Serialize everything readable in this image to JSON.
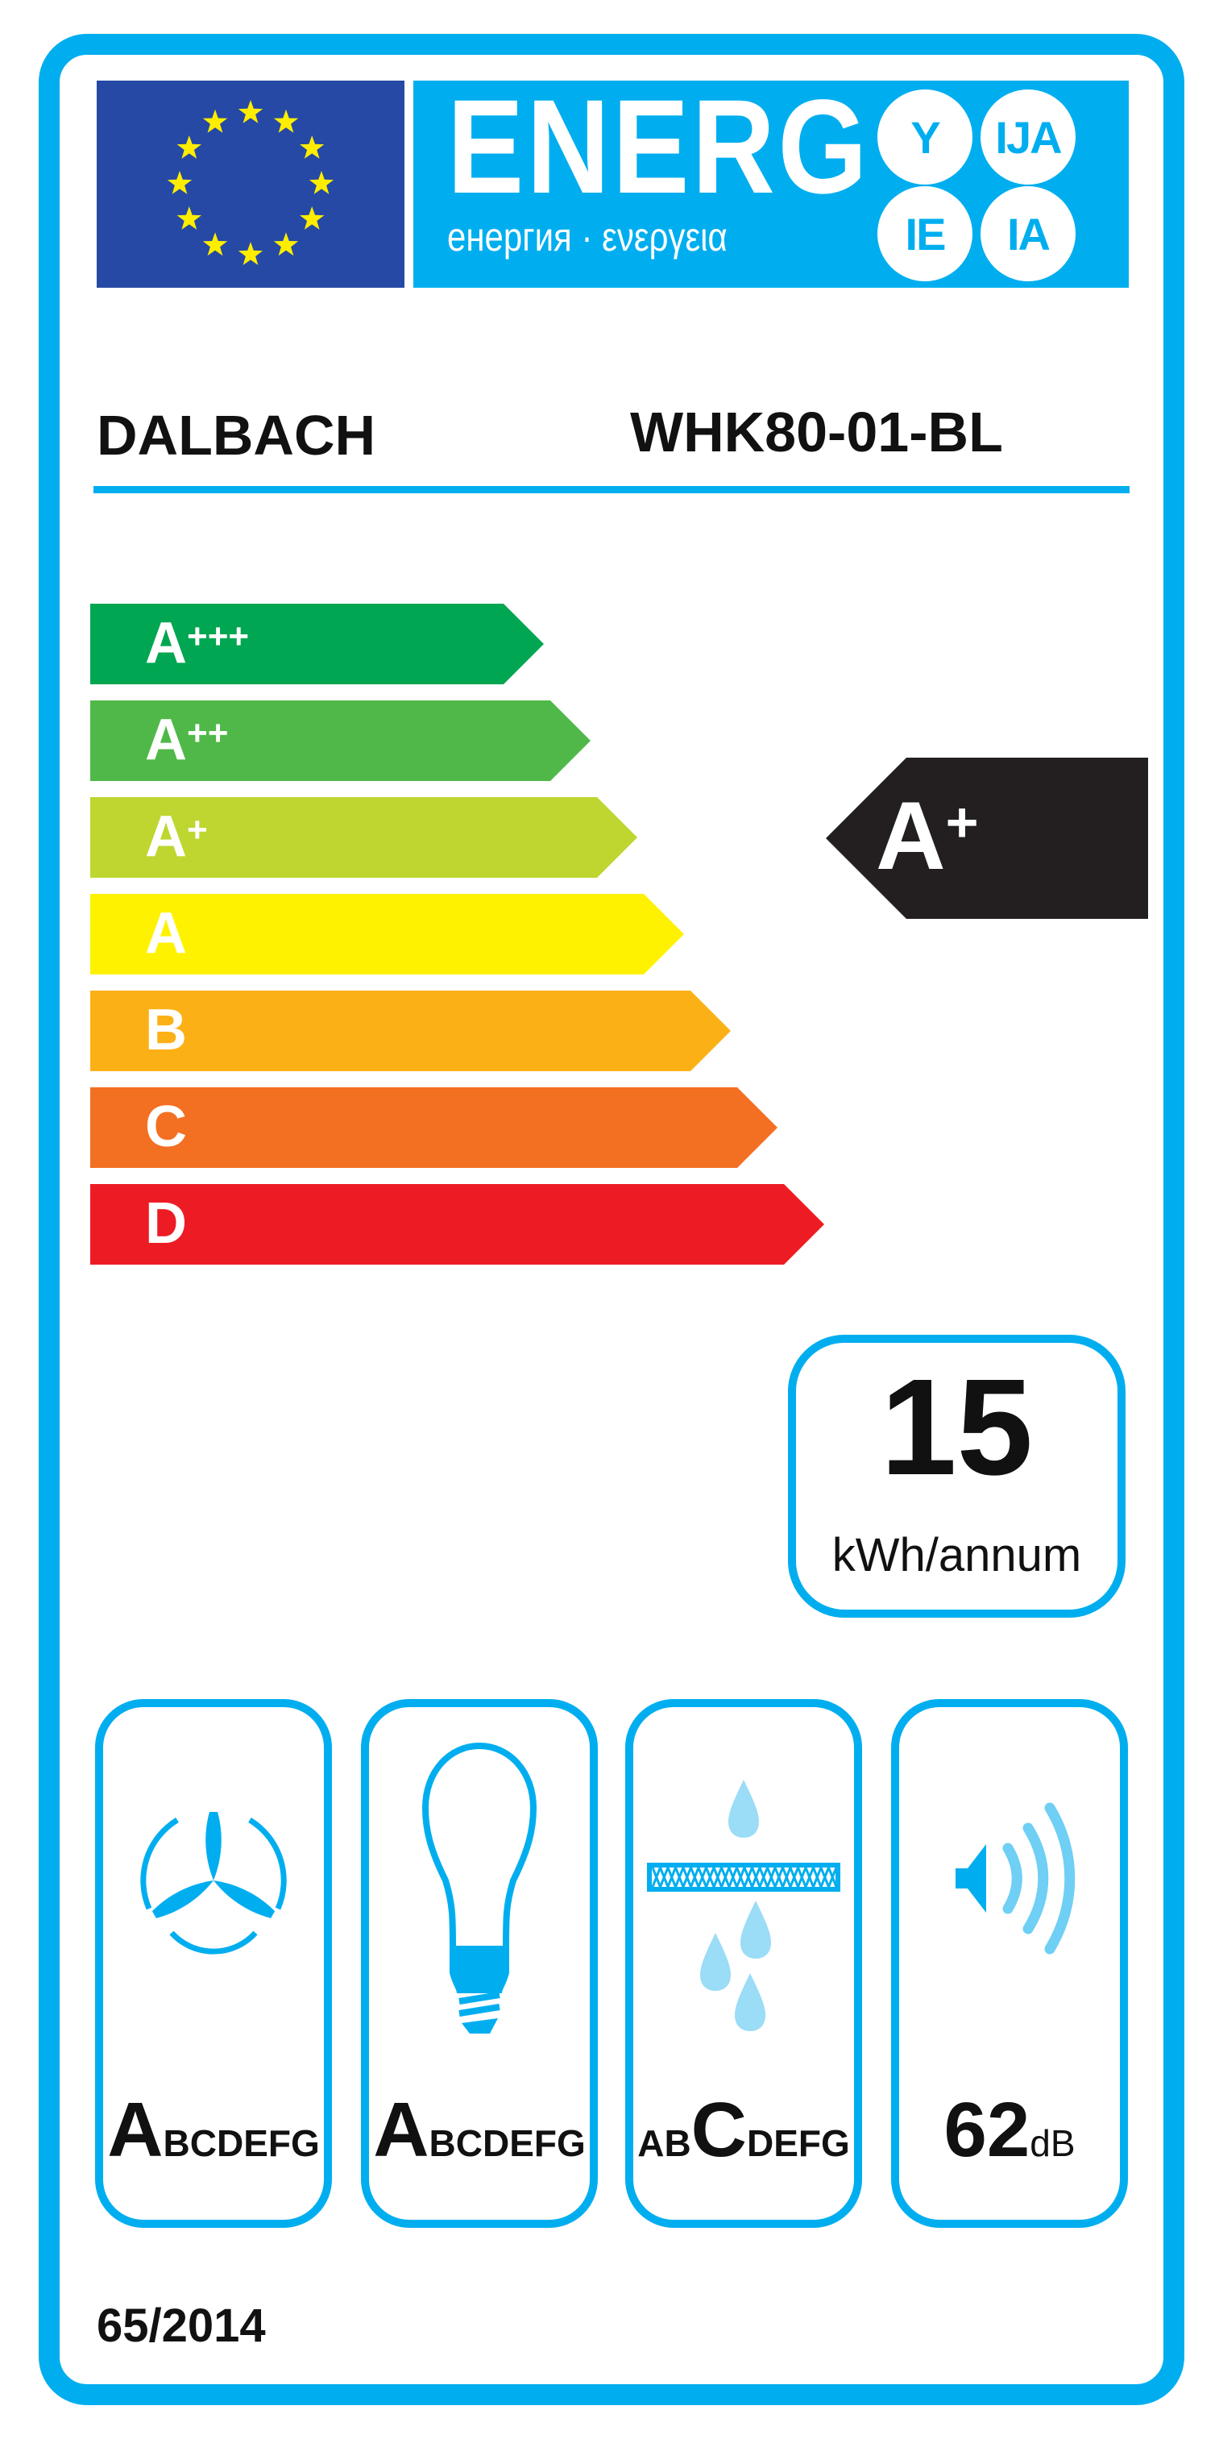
{
  "header": {
    "energy_word": "ENERG",
    "energy_subtitle": "енергия · ενεργεια",
    "suffixes": [
      "Y",
      "IJA",
      "IE",
      "IA"
    ],
    "flag_colors": {
      "background": "#2549a4",
      "stars": "#ffed00"
    }
  },
  "supplier": "DALBACH",
  "model": "WHK80-01-BL",
  "scale": [
    {
      "letter": "A",
      "plus": "+++",
      "color": "#00a651"
    },
    {
      "letter": "A",
      "plus": "++",
      "color": "#50b848"
    },
    {
      "letter": "A",
      "plus": "+",
      "color": "#bed62f"
    },
    {
      "letter": "A",
      "plus": "",
      "color": "#fff200"
    },
    {
      "letter": "B",
      "plus": "",
      "color": "#fbb116"
    },
    {
      "letter": "C",
      "plus": "",
      "color": "#f36f21"
    },
    {
      "letter": "D",
      "plus": "",
      "color": "#ed1c24"
    }
  ],
  "rating": {
    "letter": "A",
    "plus": "+",
    "color": "#231f20"
  },
  "consumption": {
    "value": "15",
    "unit": "kWh/annum"
  },
  "pictograms": [
    {
      "icon": "fan-icon",
      "prefix": "",
      "selected": "A",
      "suffix": "BCDEFG"
    },
    {
      "icon": "light-bulb-icon",
      "prefix": "",
      "selected": "A",
      "suffix": "BCDEFG"
    },
    {
      "icon": "grease-filter-icon",
      "prefix": "AB",
      "selected": "C",
      "suffix": "DEFG"
    },
    {
      "icon": "speaker-icon",
      "value": "62",
      "unit": "dB"
    }
  ],
  "regulation": "65/2014",
  "accent_color": "#00aeef"
}
